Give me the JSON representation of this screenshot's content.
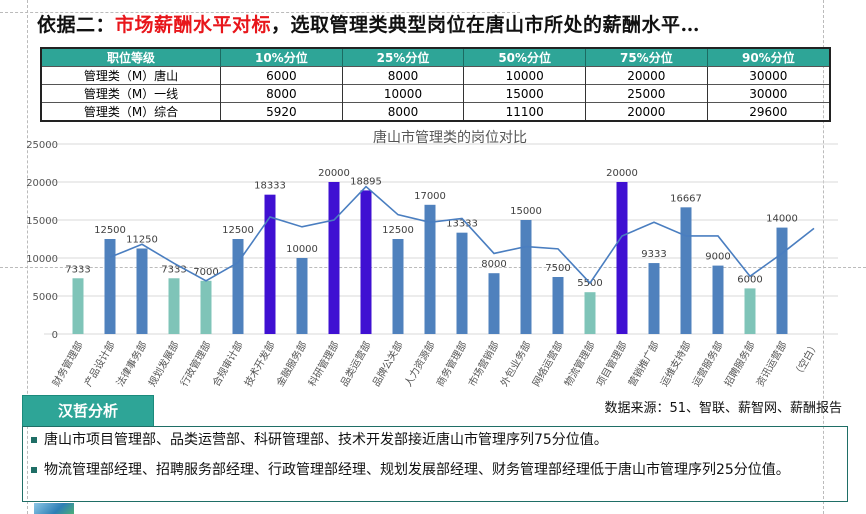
{
  "title": {
    "prefix": "依据二：",
    "highlight": "市场薪酬水平对标",
    "suffix": "，选取管理类典型岗位在唐山市所处的薪酬水平…"
  },
  "table": {
    "headers": [
      "职位等级",
      "10%分位",
      "25%分位",
      "50%分位",
      "75%分位",
      "90%分位"
    ],
    "rows": [
      [
        "管理类（M）唐山",
        "6000",
        "8000",
        "10000",
        "20000",
        "30000"
      ],
      [
        "管理类（M）一线",
        "8000",
        "10000",
        "15000",
        "25000",
        "30000"
      ],
      [
        "管理类（M）综合",
        "5920",
        "8000",
        "11100",
        "20000",
        "29600"
      ]
    ]
  },
  "chart_data": {
    "type": "bar",
    "title": "唐山市管理类的岗位对比",
    "ylim": [
      0,
      25000
    ],
    "yticks": [
      "0",
      "5000",
      "10000",
      "15000",
      "20000",
      "25000"
    ],
    "grid": true,
    "categories": [
      "财务管理部",
      "产品设计部",
      "法律事务部",
      "规划发展部",
      "行政管理部",
      "合规审计部",
      "技术开发部",
      "金融服务部",
      "科研管理部",
      "品类运营部",
      "品牌公关部",
      "人力资源部",
      "商务管理部",
      "市场营销部",
      "外包业务部",
      "网络运营部",
      "物流管理部",
      "项目管理部",
      "营销推广部",
      "运维支持部",
      "运营服务部",
      "招聘服务部",
      "资讯运营部",
      "（空白）"
    ],
    "series": [
      {
        "type": "bar",
        "values": [
          7333,
          12500,
          11250,
          7333,
          7000,
          12500,
          18333,
          10000,
          20000,
          18895,
          12500,
          17000,
          13333,
          8000,
          15000,
          7500,
          5500,
          20000,
          9333,
          16667,
          9000,
          6000,
          14000,
          null
        ],
        "colors": [
          "low",
          "mid",
          "mid",
          "low",
          "low",
          "mid",
          "high",
          "mid",
          "high",
          "high",
          "mid",
          "mid",
          "mid",
          "mid",
          "mid",
          "mid",
          "low",
          "high",
          "mid",
          "mid",
          "mid",
          "low",
          "mid",
          null
        ]
      },
      {
        "type": "line",
        "values": [
          null,
          10100,
          11800,
          9300,
          7000,
          9400,
          15400,
          14100,
          15000,
          19400,
          15700,
          14700,
          15200,
          10600,
          11500,
          11200,
          6700,
          12900,
          14700,
          12900,
          12900,
          7600,
          10600,
          13900
        ]
      }
    ],
    "palette": {
      "low": "#7fc4b8",
      "mid": "#4f81bd",
      "high": "#3f10d2",
      "line": "#4a7ec0"
    }
  },
  "analysis": {
    "label": "汉哲分析",
    "source": "数据来源：51、智联、薪智网、薪酬报告",
    "bullets": [
      "唐山市项目管理部、品类运营部、科研管理部、技术开发部接近唐山市管理序列75分位值。",
      "物流管理部经理、招聘服务部经理、行政管理部经理、规划发展部经理、财务管理部经理低于唐山市管理序列25分位值。"
    ]
  }
}
